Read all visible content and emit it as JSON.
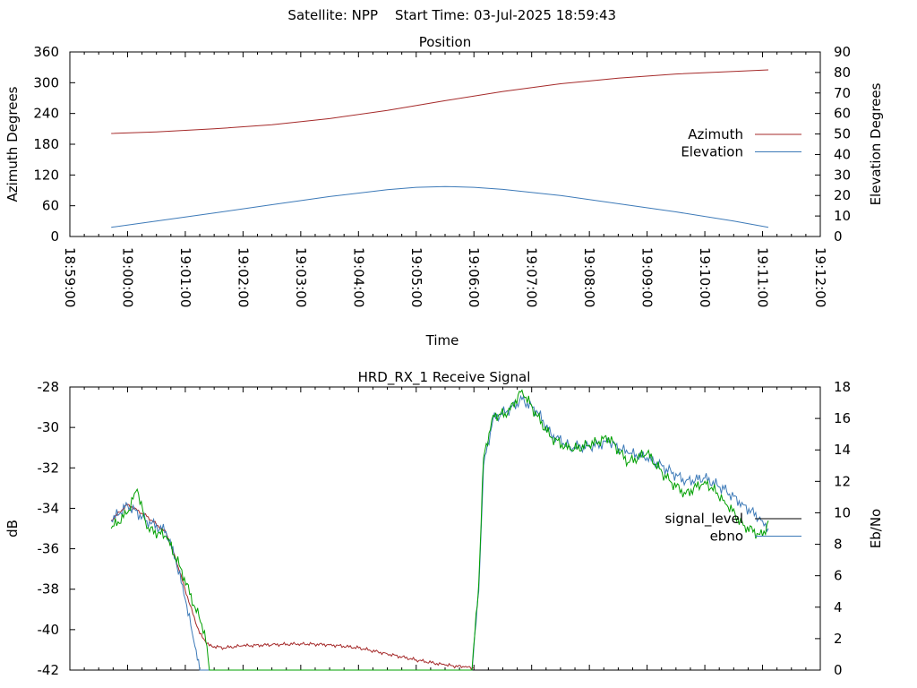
{
  "header": {
    "satellite_label": "Satellite: NPP",
    "start_time_label": "Start Time: 03-Jul-2025 18:59:43"
  },
  "chart_data": [
    {
      "type": "line",
      "title": "Position",
      "xlabel": "Time",
      "ylabel": "Azimuth Degrees",
      "y2label": "Elevation Degrees",
      "ylim": [
        0,
        360
      ],
      "y2lim": [
        0,
        90
      ],
      "yticks": [
        "0",
        "60",
        "120",
        "180",
        "240",
        "300",
        "360"
      ],
      "y2ticks": [
        "0",
        "10",
        "20",
        "30",
        "40",
        "50",
        "60",
        "70",
        "80",
        "90"
      ],
      "xticks": [
        "18:59:00",
        "19:00:00",
        "19:01:00",
        "19:02:00",
        "19:03:00",
        "19:04:00",
        "19:05:00",
        "19:06:00",
        "19:07:00",
        "19:08:00",
        "19:09:00",
        "19:10:00",
        "19:11:00",
        "19:12:00"
      ],
      "legend_position": "right",
      "grid": false,
      "series": [
        {
          "name": "Azimuth",
          "axis": "left",
          "color": "#a52a2a",
          "points": [
            [
              "18:59:43",
              201
            ],
            [
              "19:00:30",
              204
            ],
            [
              "19:01:30",
              210
            ],
            [
              "19:02:30",
              218
            ],
            [
              "19:03:30",
              230
            ],
            [
              "19:04:30",
              246
            ],
            [
              "19:05:30",
              265
            ],
            [
              "19:06:30",
              283
            ],
            [
              "19:07:30",
              298
            ],
            [
              "19:08:30",
              309
            ],
            [
              "19:09:30",
              317
            ],
            [
              "19:10:30",
              322
            ],
            [
              "19:11:06",
              325
            ]
          ]
        },
        {
          "name": "Elevation",
          "axis": "right",
          "color": "#3d7ab8",
          "points": [
            [
              "18:59:43",
              4.5
            ],
            [
              "19:00:30",
              7.5
            ],
            [
              "19:01:30",
              11.5
            ],
            [
              "19:02:30",
              15.5
            ],
            [
              "19:03:30",
              19.5
            ],
            [
              "19:04:30",
              22.8
            ],
            [
              "19:05:00",
              24
            ],
            [
              "19:05:30",
              24.4
            ],
            [
              "19:06:00",
              24
            ],
            [
              "19:06:30",
              23
            ],
            [
              "19:07:30",
              20
            ],
            [
              "19:08:30",
              16
            ],
            [
              "19:09:30",
              12
            ],
            [
              "19:10:30",
              7.5
            ],
            [
              "19:11:06",
              4.5
            ]
          ]
        }
      ]
    },
    {
      "type": "line",
      "title": "HRD_RX_1 Receive Signal",
      "xlabel": "",
      "ylabel": "dB",
      "y2label": "Eb/No",
      "ylim": [
        -42,
        -28
      ],
      "y2lim": [
        0,
        18
      ],
      "yticks": [
        "-42",
        "-40",
        "-38",
        "-36",
        "-34",
        "-32",
        "-30",
        "-28"
      ],
      "y2ticks": [
        "0",
        "2",
        "4",
        "6",
        "8",
        "10",
        "12",
        "14",
        "16",
        "18"
      ],
      "legend_position": "right",
      "grid": false,
      "series": [
        {
          "name": "signal_level",
          "axis": "left",
          "color": "#a52a2a",
          "points": [
            [
              "18:59:43",
              -34.6
            ],
            [
              "19:00:00",
              -33.8
            ],
            [
              "19:00:20",
              -34.4
            ],
            [
              "19:00:40",
              -35.2
            ],
            [
              "19:00:50",
              -36.5
            ],
            [
              "19:01:05",
              -38.8
            ],
            [
              "19:01:15",
              -40.2
            ],
            [
              "19:01:25",
              -40.8
            ],
            [
              "19:01:40",
              -40.9
            ],
            [
              "19:02:00",
              -40.8
            ],
            [
              "19:02:30",
              -40.75
            ],
            [
              "19:03:00",
              -40.7
            ],
            [
              "19:03:30",
              -40.75
            ],
            [
              "19:04:00",
              -40.9
            ],
            [
              "19:04:30",
              -41.2
            ],
            [
              "19:05:00",
              -41.5
            ],
            [
              "19:05:30",
              -41.75
            ],
            [
              "19:05:50",
              -41.85
            ],
            [
              "19:06:00",
              -41.9
            ]
          ]
        },
        {
          "name": "ebno",
          "axis": "right",
          "color": "#3d7ab8",
          "points": [
            [
              "18:59:43",
              9.5
            ],
            [
              "19:00:00",
              10.5
            ],
            [
              "19:00:20",
              9.5
            ],
            [
              "19:00:40",
              8.8
            ],
            [
              "19:00:50",
              7
            ],
            [
              "19:01:00",
              4.5
            ],
            [
              "19:01:10",
              1.5
            ],
            [
              "19:01:15",
              0
            ],
            [
              "19:05:58",
              0
            ],
            [
              "19:06:05",
              5
            ],
            [
              "19:06:10",
              13
            ],
            [
              "19:06:20",
              16
            ],
            [
              "19:06:35",
              16.5
            ],
            [
              "19:06:50",
              17.2
            ],
            [
              "19:07:05",
              16.5
            ],
            [
              "19:07:20",
              15
            ],
            [
              "19:07:40",
              14.2
            ],
            [
              "19:08:00",
              14.2
            ],
            [
              "19:08:20",
              14.5
            ],
            [
              "19:08:40",
              13.8
            ],
            [
              "19:09:00",
              13.5
            ],
            [
              "19:09:20",
              12.8
            ],
            [
              "19:09:40",
              12
            ],
            [
              "19:10:00",
              12.2
            ],
            [
              "19:10:20",
              11.5
            ],
            [
              "19:10:40",
              10.5
            ],
            [
              "19:11:00",
              9.5
            ],
            [
              "19:11:06",
              9
            ]
          ]
        },
        {
          "name": "",
          "axis": "right",
          "color": "#00a000",
          "points": [
            [
              "18:59:43",
              9
            ],
            [
              "19:00:00",
              10
            ],
            [
              "19:00:10",
              11.5
            ],
            [
              "19:00:20",
              9
            ],
            [
              "19:00:40",
              8.5
            ],
            [
              "19:00:55",
              6.5
            ],
            [
              "19:01:10",
              4
            ],
            [
              "19:01:20",
              2.5
            ],
            [
              "19:01:25",
              0
            ],
            [
              "19:05:58",
              0
            ],
            [
              "19:06:05",
              5.5
            ],
            [
              "19:06:10",
              13.5
            ],
            [
              "19:06:20",
              16.2
            ],
            [
              "19:06:35",
              16.3
            ],
            [
              "19:06:50",
              17.8
            ],
            [
              "19:07:05",
              16.2
            ],
            [
              "19:07:20",
              14.8
            ],
            [
              "19:07:40",
              14
            ],
            [
              "19:08:00",
              14.3
            ],
            [
              "19:08:20",
              14.8
            ],
            [
              "19:08:40",
              13.2
            ],
            [
              "19:09:00",
              13.8
            ],
            [
              "19:09:20",
              12.2
            ],
            [
              "19:09:40",
              11.2
            ],
            [
              "19:10:00",
              12
            ],
            [
              "19:10:20",
              10.8
            ],
            [
              "19:10:40",
              9.2
            ],
            [
              "19:11:00",
              8.5
            ],
            [
              "19:11:06",
              9.5
            ]
          ]
        }
      ]
    }
  ]
}
